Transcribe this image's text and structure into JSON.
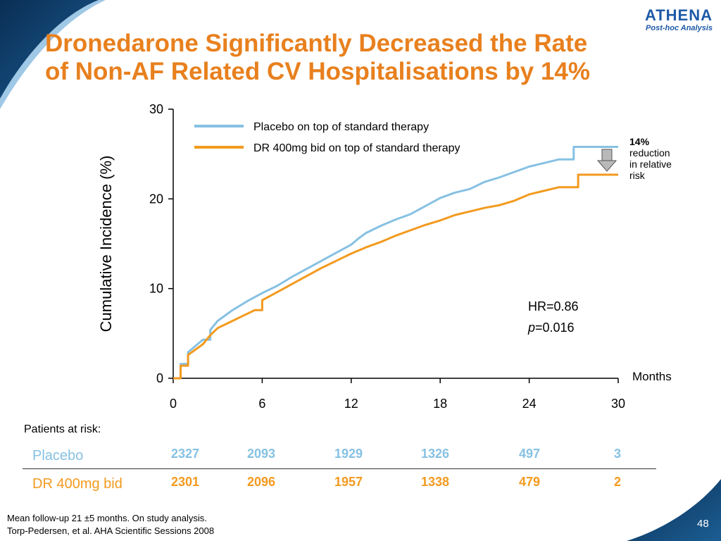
{
  "header": {
    "title_line1": "Dronedarone Significantly Decreased the Rate",
    "title_line2": "of Non-AF Related CV Hospitalisations by 14%",
    "logo_text": "ATHENA",
    "logo_subtext": "Post-hoc Analysis"
  },
  "colors": {
    "title": "#E8801E",
    "placebo": "#86C1E3",
    "dronedarone": "#F39A1F",
    "brand": "#1E5AA8",
    "swoosh": "#0B3A66"
  },
  "chart_data": {
    "type": "line",
    "xlabel": "Months",
    "ylabel": "Cumulative Incidence (%)",
    "xlim": [
      0,
      30
    ],
    "ylim": [
      0,
      30
    ],
    "x_ticks": [
      "0",
      "6",
      "12",
      "18",
      "24",
      "30"
    ],
    "y_ticks": [
      "0",
      "10",
      "20",
      "30"
    ],
    "grid": false,
    "legend_position": "top",
    "series": [
      {
        "name": "Placebo on top of standard therapy",
        "color": "#86C1E3",
        "x": [
          0,
          0.5,
          1,
          1.5,
          2,
          2.5,
          3,
          3.5,
          4,
          5,
          6,
          7,
          8,
          9,
          10,
          11,
          12,
          12.5,
          13,
          14,
          15,
          16,
          17,
          18,
          19,
          20,
          21,
          22,
          23,
          24,
          25,
          26,
          26.8,
          27,
          28,
          29,
          30
        ],
        "values": [
          0,
          1.6,
          2.9,
          3.6,
          4.3,
          5.4,
          6.4,
          7.0,
          7.6,
          8.6,
          9.5,
          10.3,
          11.3,
          12.2,
          13.1,
          14.0,
          14.9,
          15.6,
          16.2,
          17.0,
          17.7,
          18.3,
          19.2,
          20.1,
          20.7,
          21.1,
          21.9,
          22.4,
          23.0,
          23.6,
          24.0,
          24.4,
          24.4,
          25.8,
          25.8,
          25.8,
          25.8
        ]
      },
      {
        "name": "DR 400mg bid on top of standard therapy",
        "color": "#F39A1F",
        "x": [
          0,
          0.5,
          1,
          1.5,
          2,
          2.5,
          3,
          3.5,
          4,
          5,
          5.5,
          6,
          7,
          8,
          9,
          10,
          11,
          12,
          13,
          14,
          15,
          16,
          17,
          18,
          19,
          20,
          21,
          22,
          23,
          24,
          25,
          26,
          27,
          27.3,
          28,
          29,
          30
        ],
        "values": [
          0,
          1.4,
          2.6,
          3.2,
          3.8,
          4.8,
          5.6,
          6.0,
          6.4,
          7.2,
          7.6,
          8.7,
          9.6,
          10.5,
          11.4,
          12.3,
          13.1,
          13.9,
          14.6,
          15.2,
          15.9,
          16.5,
          17.1,
          17.6,
          18.2,
          18.6,
          19.0,
          19.3,
          19.8,
          20.5,
          20.9,
          21.3,
          21.3,
          22.7,
          22.7,
          22.7,
          22.7
        ]
      }
    ]
  },
  "annotations": {
    "reduction_pct": "14%",
    "reduction_text": [
      "reduction",
      "in relative",
      "risk"
    ],
    "hr": "HR=0.86",
    "p_symbol": "p",
    "p_value": "=0.016"
  },
  "risk_table": {
    "title": "Patients at risk:",
    "rows": [
      {
        "label": "Placebo",
        "color": "#86C1E3",
        "values": [
          "2327",
          "2093",
          "1929",
          "1326",
          "497",
          "3"
        ]
      },
      {
        "label": "DR 400mg bid",
        "color": "#F39A1F",
        "values": [
          "2301",
          "2096",
          "1957",
          "1338",
          "479",
          "2"
        ]
      }
    ]
  },
  "footer": {
    "note_line1": "Mean follow-up 21 ±5 months. On study analysis.",
    "note_line2": "Torp-Pedersen, et al. AHA Scientific Sessions 2008",
    "page_number": "48"
  }
}
